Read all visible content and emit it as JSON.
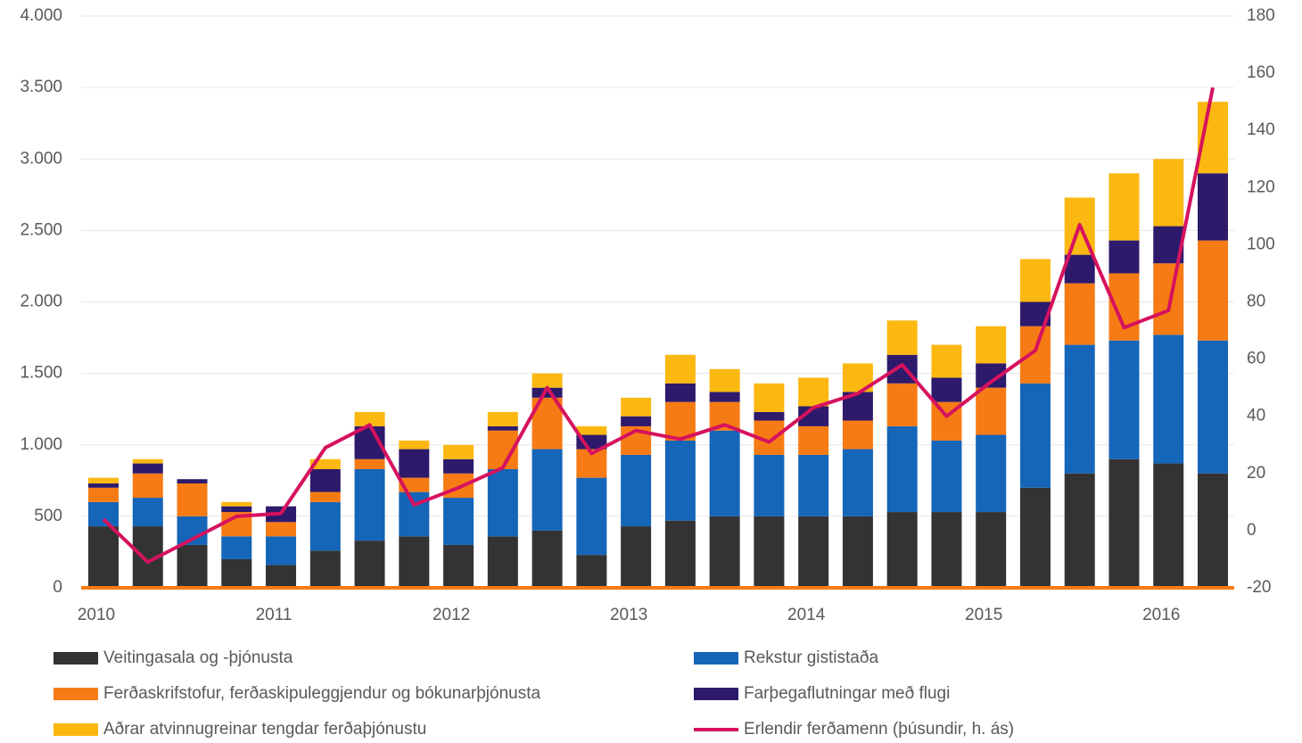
{
  "chart_data": {
    "type": "bar",
    "stacked": true,
    "categories": [
      "2010",
      null,
      null,
      null,
      "2011",
      null,
      null,
      null,
      "2012",
      null,
      null,
      null,
      "2013",
      null,
      null,
      null,
      "2014",
      null,
      null,
      null,
      "2015",
      null,
      null,
      null,
      "2016",
      null
    ],
    "series": [
      {
        "name": "Veitingasala og -þjónusta",
        "color": "#333333",
        "values": [
          430,
          430,
          300,
          200,
          160,
          260,
          330,
          360,
          300,
          360,
          400,
          230,
          430,
          470,
          500,
          500,
          500,
          500,
          530,
          530,
          530,
          700,
          800,
          900,
          870,
          800
        ]
      },
      {
        "name": "Rekstur gististaða",
        "color": "#1565b8",
        "values": [
          170,
          200,
          200,
          160,
          200,
          340,
          500,
          310,
          330,
          470,
          570,
          540,
          500,
          560,
          600,
          430,
          430,
          470,
          600,
          500,
          540,
          730,
          900,
          830,
          900,
          930
        ]
      },
      {
        "name": "Ferðaskrifstofur, ferðaskipuleggjendur og bókunarþjónusta",
        "color": "#f77b14",
        "values": [
          100,
          170,
          230,
          170,
          100,
          70,
          70,
          100,
          170,
          270,
          360,
          200,
          200,
          270,
          200,
          240,
          200,
          200,
          300,
          270,
          330,
          400,
          430,
          470,
          500,
          700
        ]
      },
      {
        "name": "Farþegaflutningar með flugi",
        "color": "#2e1a6b",
        "values": [
          30,
          70,
          30,
          40,
          110,
          160,
          230,
          200,
          100,
          30,
          70,
          100,
          70,
          130,
          70,
          60,
          140,
          200,
          200,
          170,
          170,
          170,
          200,
          230,
          260,
          470
        ]
      },
      {
        "name": "Aðrar atvinnugreinar tengdar ferðaþjónustu",
        "color": "#fbb811",
        "values": [
          40,
          30,
          0,
          30,
          0,
          70,
          100,
          60,
          100,
          100,
          100,
          60,
          130,
          200,
          160,
          200,
          200,
          200,
          240,
          230,
          260,
          300,
          400,
          470,
          470,
          500
        ]
      },
      {
        "name": "Erlendir ferðamenn (þúsundir, h. ás)",
        "color": "#d6125e",
        "type": "line",
        "axis": "y2",
        "values": [
          4,
          -11,
          -3,
          5,
          6,
          29,
          37,
          9,
          15,
          22,
          50,
          27,
          35,
          32,
          37,
          31,
          43,
          48,
          58,
          40,
          52,
          63,
          107,
          71,
          77,
          155
        ]
      }
    ],
    "ylim": [
      0,
      4000
    ],
    "yticks": [
      0,
      500,
      {
        "value": 1000,
        "label": "1.000"
      },
      {
        "value": 1500,
        "label": "1.500"
      },
      {
        "value": 2000,
        "label": "2.000"
      },
      {
        "value": 2500,
        "label": "2.500"
      },
      {
        "value": 3000,
        "label": "3.000"
      },
      {
        "value": 3500,
        "label": "3.500"
      },
      {
        "value": 4000,
        "label": "4.000"
      }
    ],
    "y2lim": [
      -20,
      180
    ],
    "y2ticks": [
      -20,
      0,
      20,
      40,
      60,
      80,
      100,
      120,
      140,
      160,
      180
    ],
    "grid": true,
    "legend": "bottom"
  }
}
